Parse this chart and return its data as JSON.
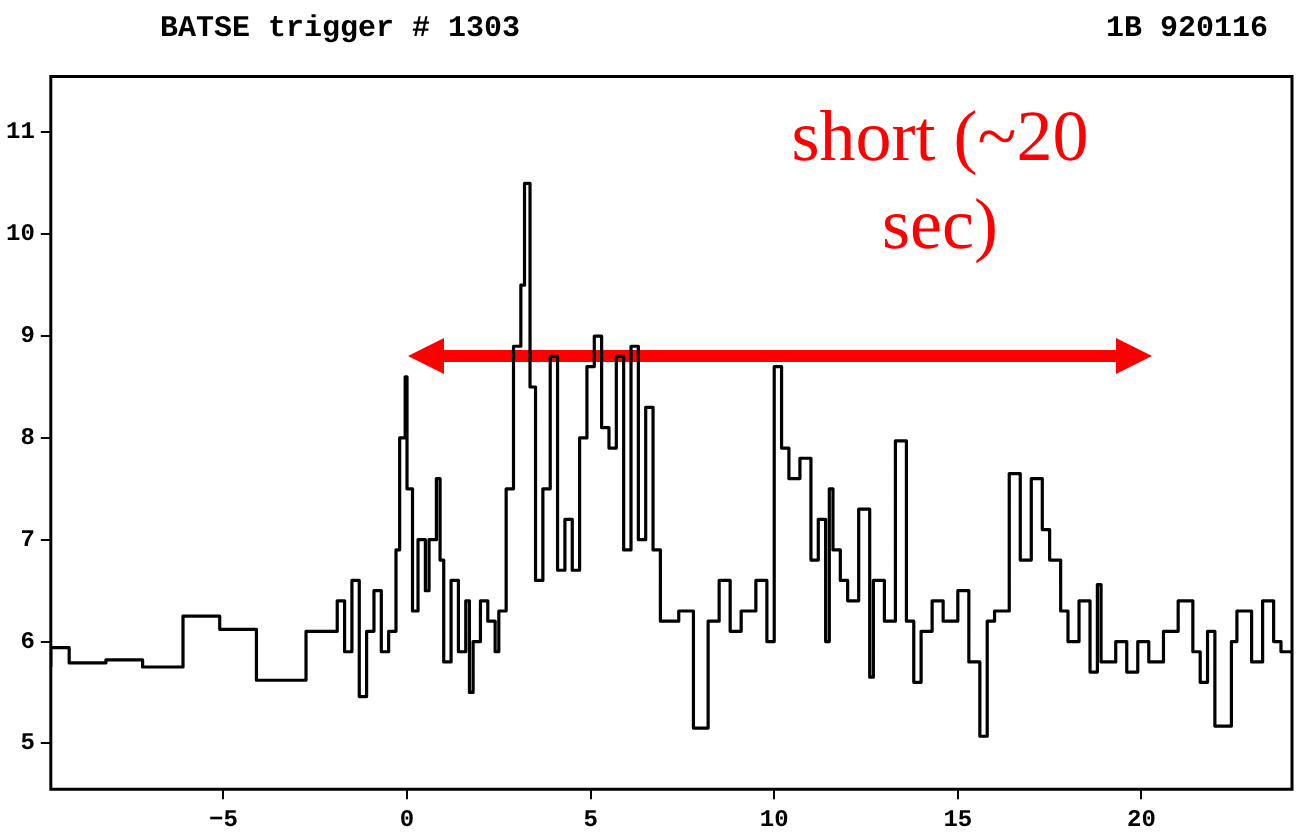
{
  "chart_data": {
    "type": "step",
    "title": "BATSE trigger # 1303",
    "subtitle": "1B 920116",
    "annotations": [
      "short (~20 sec)"
    ],
    "x": [
      -9.7,
      -9.2,
      -8.2,
      -7.2,
      -6.1,
      -5.1,
      -4.1,
      -2.75,
      -1.95,
      -1.9,
      -1.7,
      -1.5,
      -1.3,
      -1.1,
      -0.9,
      -0.7,
      -0.5,
      -0.3,
      -0.2,
      -0.05,
      0,
      0.15,
      0.3,
      0.5,
      0.6,
      0.8,
      0.9,
      1.0,
      1.2,
      1.4,
      1.6,
      1.7,
      1.8,
      2.0,
      2.2,
      2.4,
      2.5,
      2.7,
      2.9,
      3.1,
      3.2,
      3.35,
      3.5,
      3.7,
      3.9,
      4.1,
      4.3,
      4.5,
      4.7,
      4.9,
      5.1,
      5.3,
      5.5,
      5.7,
      5.9,
      6.1,
      6.3,
      6.5,
      6.7,
      6.9,
      7.1,
      7.4,
      7.8,
      8.2,
      8.5,
      8.8,
      9.1,
      9.5,
      9.8,
      10.0,
      10.2,
      10.4,
      10.7,
      11.0,
      11.2,
      11.4,
      11.5,
      11.6,
      11.8,
      12.0,
      12.3,
      12.6,
      12.7,
      13.0,
      13.3,
      13.6,
      13.8,
      14.0,
      14.3,
      14.6,
      15.0,
      15.3,
      15.6,
      15.8,
      16.0,
      16.4,
      16.7,
      17.0,
      17.3,
      17.5,
      17.8,
      18.0,
      18.3,
      18.6,
      18.8,
      18.9,
      19.3,
      19.6,
      19.9,
      20.2,
      20.6,
      21.0,
      21.4,
      21.6,
      21.8,
      22.0,
      22.45,
      22.6,
      23.0,
      23.3,
      23.6,
      23.8,
      24.1
    ],
    "values": [
      5.75,
      5.94,
      5.79,
      5.82,
      5.75,
      6.25,
      6.12,
      5.62,
      6.1,
      6.1,
      6.4,
      5.9,
      6.6,
      5.46,
      6.1,
      6.5,
      5.9,
      6.1,
      6.9,
      8.0,
      8.6,
      7.5,
      6.3,
      7.0,
      6.5,
      7.0,
      7.6,
      6.8,
      5.8,
      6.6,
      5.9,
      6.4,
      5.5,
      6.0,
      6.4,
      6.2,
      5.9,
      6.3,
      7.5,
      8.9,
      9.5,
      10.5,
      8.5,
      6.6,
      7.5,
      8.8,
      6.7,
      7.2,
      6.7,
      8.0,
      8.7,
      9.0,
      8.1,
      7.9,
      8.8,
      6.9,
      8.9,
      7.0,
      8.3,
      6.9,
      6.2,
      6.2,
      6.3,
      5.15,
      6.2,
      6.6,
      6.1,
      6.3,
      6.6,
      6.0,
      8.7,
      7.9,
      7.6,
      7.8,
      6.8,
      7.2,
      6.0,
      7.5,
      6.9,
      6.6,
      6.4,
      7.3,
      5.65,
      6.6,
      6.2,
      7.97,
      6.2,
      5.6,
      6.1,
      6.4,
      6.2,
      6.5,
      5.8,
      5.07,
      6.2,
      6.3,
      7.65,
      6.8,
      7.6,
      7.1,
      6.8,
      6.3,
      6.0,
      6.4,
      5.7,
      6.56,
      5.8,
      6.0,
      5.7,
      6.0,
      5.8,
      6.1,
      6.4,
      5.9,
      5.6,
      6.1,
      5.17,
      6.0,
      6.3,
      5.8,
      6.4,
      6.0,
      5.9
    ],
    "color": "#000000",
    "xlim": [
      -9.7,
      24.1
    ],
    "ylim": [
      4.55,
      11.55
    ],
    "xticks": [
      -5,
      0,
      5,
      10,
      15,
      20
    ],
    "yticks": [
      5,
      6,
      7,
      8,
      9,
      10,
      11
    ],
    "grid": false
  }
}
